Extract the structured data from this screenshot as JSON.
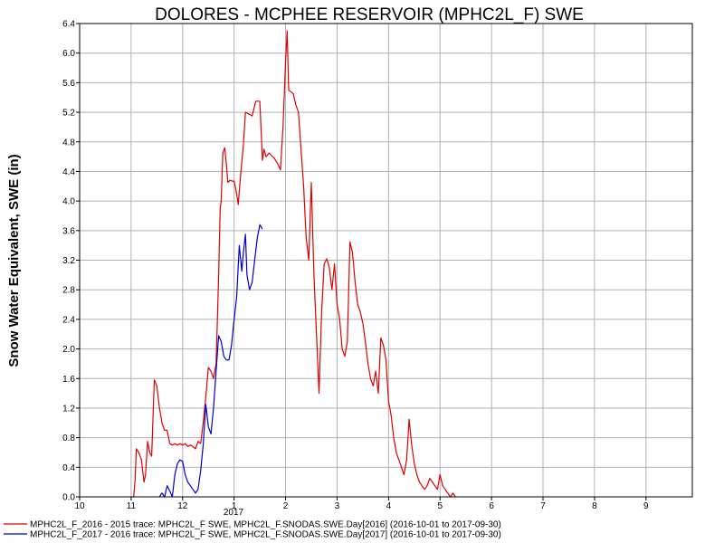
{
  "chart_data": {
    "type": "line",
    "title": "DOLORES - MCPHEE RESERVOIR (MPHC2L_F) SWE",
    "ylabel": "Snow Water Equivalent, SWE (in)",
    "xlabel": "",
    "year_label": "2017",
    "xlim": [
      10,
      10.9
    ],
    "ylim": [
      0,
      6.4
    ],
    "grid": true,
    "legend_position": "bottom",
    "x_ticks": [
      {
        "value": 10,
        "label": "10"
      },
      {
        "value": 11,
        "label": "11"
      },
      {
        "value": 12,
        "label": "12"
      },
      {
        "value": 13,
        "label": "1"
      },
      {
        "value": 14,
        "label": "2"
      },
      {
        "value": 15,
        "label": "3"
      },
      {
        "value": 16,
        "label": "4"
      },
      {
        "value": 17,
        "label": "5"
      },
      {
        "value": 18,
        "label": "6"
      },
      {
        "value": 19,
        "label": "7"
      },
      {
        "value": 20,
        "label": "8"
      },
      {
        "value": 21,
        "label": "9"
      }
    ],
    "y_ticks": [
      "0.0",
      "0.4",
      "0.8",
      "1.2",
      "1.6",
      "2.0",
      "2.4",
      "2.8",
      "3.2",
      "3.6",
      "4.0",
      "4.4",
      "4.8",
      "5.2",
      "5.6",
      "6.0",
      "6.4"
    ],
    "series": [
      {
        "name": "MPHC2L_F_2016 - 2015 trace: MPHC2L_F SWE, MPHC2L_F.SNODAS.SWE.Day[2016] (2016-10-01 to 2017-09-30)",
        "color": "#e00000",
        "points": [
          [
            11.0,
            0
          ],
          [
            11.05,
            0
          ],
          [
            11.08,
            0.25
          ],
          [
            11.1,
            0.65
          ],
          [
            11.15,
            0.6
          ],
          [
            11.2,
            0.5
          ],
          [
            11.25,
            0.2
          ],
          [
            11.28,
            0.3
          ],
          [
            11.32,
            0.75
          ],
          [
            11.36,
            0.6
          ],
          [
            11.4,
            0.55
          ],
          [
            11.45,
            1.58
          ],
          [
            11.5,
            1.5
          ],
          [
            11.55,
            1.2
          ],
          [
            11.6,
            1.0
          ],
          [
            11.65,
            0.9
          ],
          [
            11.7,
            0.9
          ],
          [
            11.75,
            0.72
          ],
          [
            11.8,
            0.7
          ],
          [
            11.85,
            0.72
          ],
          [
            11.9,
            0.7
          ],
          [
            11.95,
            0.72
          ],
          [
            12.0,
            0.7
          ],
          [
            12.05,
            0.72
          ],
          [
            12.1,
            0.68
          ],
          [
            12.15,
            0.7
          ],
          [
            12.2,
            0.68
          ],
          [
            12.25,
            0.65
          ],
          [
            12.3,
            0.75
          ],
          [
            12.35,
            0.72
          ],
          [
            12.4,
            1.0
          ],
          [
            12.45,
            1.35
          ],
          [
            12.5,
            1.75
          ],
          [
            12.55,
            1.7
          ],
          [
            12.6,
            1.6
          ],
          [
            12.65,
            1.8
          ],
          [
            12.7,
            3.0
          ],
          [
            12.73,
            3.9
          ],
          [
            12.75,
            4.0
          ],
          [
            12.78,
            4.65
          ],
          [
            12.82,
            4.72
          ],
          [
            12.85,
            4.5
          ],
          [
            12.88,
            4.25
          ],
          [
            12.92,
            4.28
          ],
          [
            12.96,
            4.27
          ],
          [
            13.0,
            4.27
          ],
          [
            13.05,
            4.1
          ],
          [
            13.08,
            3.95
          ],
          [
            13.12,
            4.3
          ],
          [
            13.18,
            4.75
          ],
          [
            13.22,
            5.2
          ],
          [
            13.28,
            5.18
          ],
          [
            13.35,
            5.15
          ],
          [
            13.42,
            5.35
          ],
          [
            13.5,
            5.35
          ],
          [
            13.55,
            4.55
          ],
          [
            13.58,
            4.7
          ],
          [
            13.62,
            4.6
          ],
          [
            13.68,
            4.65
          ],
          [
            13.72,
            4.62
          ],
          [
            13.78,
            4.58
          ],
          [
            13.85,
            4.5
          ],
          [
            13.9,
            4.42
          ],
          [
            13.95,
            5.0
          ],
          [
            14.0,
            5.9
          ],
          [
            14.03,
            6.3
          ],
          [
            14.06,
            5.5
          ],
          [
            14.1,
            5.48
          ],
          [
            14.15,
            5.45
          ],
          [
            14.2,
            5.3
          ],
          [
            14.25,
            5.2
          ],
          [
            14.3,
            4.7
          ],
          [
            14.35,
            4.2
          ],
          [
            14.4,
            3.5
          ],
          [
            14.45,
            3.2
          ],
          [
            14.5,
            4.25
          ],
          [
            14.55,
            3.0
          ],
          [
            14.6,
            2.2
          ],
          [
            14.65,
            1.4
          ],
          [
            14.7,
            2.5
          ],
          [
            14.75,
            3.15
          ],
          [
            14.8,
            3.22
          ],
          [
            14.85,
            3.1
          ],
          [
            14.9,
            2.8
          ],
          [
            14.95,
            3.15
          ],
          [
            15.0,
            2.6
          ],
          [
            15.05,
            2.4
          ],
          [
            15.1,
            2.0
          ],
          [
            15.15,
            1.9
          ],
          [
            15.2,
            2.1
          ],
          [
            15.25,
            3.45
          ],
          [
            15.3,
            3.3
          ],
          [
            15.35,
            2.9
          ],
          [
            15.4,
            2.6
          ],
          [
            15.45,
            2.5
          ],
          [
            15.5,
            2.35
          ],
          [
            15.55,
            2.1
          ],
          [
            15.6,
            1.8
          ],
          [
            15.65,
            1.6
          ],
          [
            15.7,
            1.5
          ],
          [
            15.75,
            1.7
          ],
          [
            15.8,
            1.4
          ],
          [
            15.85,
            2.15
          ],
          [
            15.9,
            2.05
          ],
          [
            15.95,
            1.85
          ],
          [
            16.0,
            1.3
          ],
          [
            16.05,
            1.1
          ],
          [
            16.1,
            0.8
          ],
          [
            16.15,
            0.6
          ],
          [
            16.2,
            0.5
          ],
          [
            16.25,
            0.4
          ],
          [
            16.3,
            0.3
          ],
          [
            16.35,
            0.5
          ],
          [
            16.4,
            1.05
          ],
          [
            16.45,
            0.7
          ],
          [
            16.5,
            0.45
          ],
          [
            16.55,
            0.3
          ],
          [
            16.6,
            0.2
          ],
          [
            16.65,
            0.15
          ],
          [
            16.7,
            0.1
          ],
          [
            16.75,
            0.15
          ],
          [
            16.8,
            0.25
          ],
          [
            16.85,
            0.2
          ],
          [
            16.9,
            0.15
          ],
          [
            16.95,
            0.1
          ],
          [
            17.0,
            0.3
          ],
          [
            17.05,
            0.15
          ],
          [
            17.1,
            0.1
          ],
          [
            17.15,
            0.05
          ],
          [
            17.2,
            0.0
          ],
          [
            17.25,
            0.05
          ],
          [
            17.3,
            0.0
          ]
        ]
      },
      {
        "name": "MPHC2L_F_2017 - 2016 trace: MPHC2L_F SWE, MPHC2L_F.SNODAS.SWE.Day[2017] (2016-10-01 to 2017-09-30)",
        "color": "#0000d0",
        "points": [
          [
            11.55,
            0
          ],
          [
            11.6,
            0.05
          ],
          [
            11.65,
            0.0
          ],
          [
            11.7,
            0.15
          ],
          [
            11.75,
            0.08
          ],
          [
            11.8,
            0.0
          ],
          [
            11.85,
            0.3
          ],
          [
            11.9,
            0.45
          ],
          [
            11.95,
            0.5
          ],
          [
            12.0,
            0.48
          ],
          [
            12.05,
            0.3
          ],
          [
            12.1,
            0.2
          ],
          [
            12.15,
            0.15
          ],
          [
            12.2,
            0.1
          ],
          [
            12.25,
            0.05
          ],
          [
            12.3,
            0.1
          ],
          [
            12.35,
            0.35
          ],
          [
            12.4,
            0.7
          ],
          [
            12.45,
            1.25
          ],
          [
            12.5,
            0.95
          ],
          [
            12.55,
            0.85
          ],
          [
            12.6,
            1.2
          ],
          [
            12.65,
            1.7
          ],
          [
            12.7,
            2.18
          ],
          [
            12.75,
            2.1
          ],
          [
            12.8,
            1.9
          ],
          [
            12.85,
            1.85
          ],
          [
            12.9,
            1.85
          ],
          [
            12.95,
            2.05
          ],
          [
            13.0,
            2.4
          ],
          [
            13.05,
            2.7
          ],
          [
            13.1,
            3.4
          ],
          [
            13.15,
            3.05
          ],
          [
            13.18,
            3.3
          ],
          [
            13.22,
            3.55
          ],
          [
            13.25,
            3.0
          ],
          [
            13.3,
            2.8
          ],
          [
            13.35,
            2.9
          ],
          [
            13.4,
            3.2
          ],
          [
            13.45,
            3.5
          ],
          [
            13.5,
            3.68
          ],
          [
            13.55,
            3.62
          ]
        ]
      }
    ]
  }
}
